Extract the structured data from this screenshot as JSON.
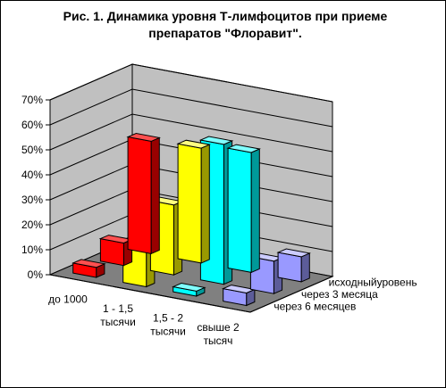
{
  "chart_data": {
    "type": "bar",
    "title_lines": [
      "Рис. 1. Динамика уровня Т-лимфоцитов при приеме",
      "препаратов \"Флоравит\"."
    ],
    "categories": [
      [
        "до 1000"
      ],
      [
        "1 - 1,5",
        "тысячи"
      ],
      [
        "1,5 - 2",
        "тысячи"
      ],
      [
        "свыше 2",
        "тысяч"
      ]
    ],
    "series": [
      {
        "name": "исходныйуровень",
        "values": [
          45,
          46,
          48,
          10
        ]
      },
      {
        "name": "через 3 месяца",
        "values": [
          9,
          28,
          56,
          13
        ]
      },
      {
        "name": "через 6 месяцев",
        "values": [
          4,
          17,
          2,
          5
        ]
      }
    ],
    "series_colors": [
      {
        "front": "#FF0000",
        "top": "#FF5050",
        "side": "#990000"
      },
      {
        "front": "#FFFF00",
        "top": "#FFFF80",
        "side": "#999900"
      },
      {
        "front": "#00FFFF",
        "top": "#80FFFF",
        "side": "#009999"
      },
      {
        "front": "#9999FF",
        "top": "#CCCCFF",
        "side": "#5C5C99"
      }
    ],
    "y_ticks": [
      "0%",
      "10%",
      "20%",
      "30%",
      "40%",
      "50%",
      "60%",
      "70%"
    ],
    "ylim": [
      0,
      70
    ],
    "y_unit": "%",
    "grid": true,
    "wall_color": "#C0C0C0",
    "floor_color": "#808080"
  }
}
